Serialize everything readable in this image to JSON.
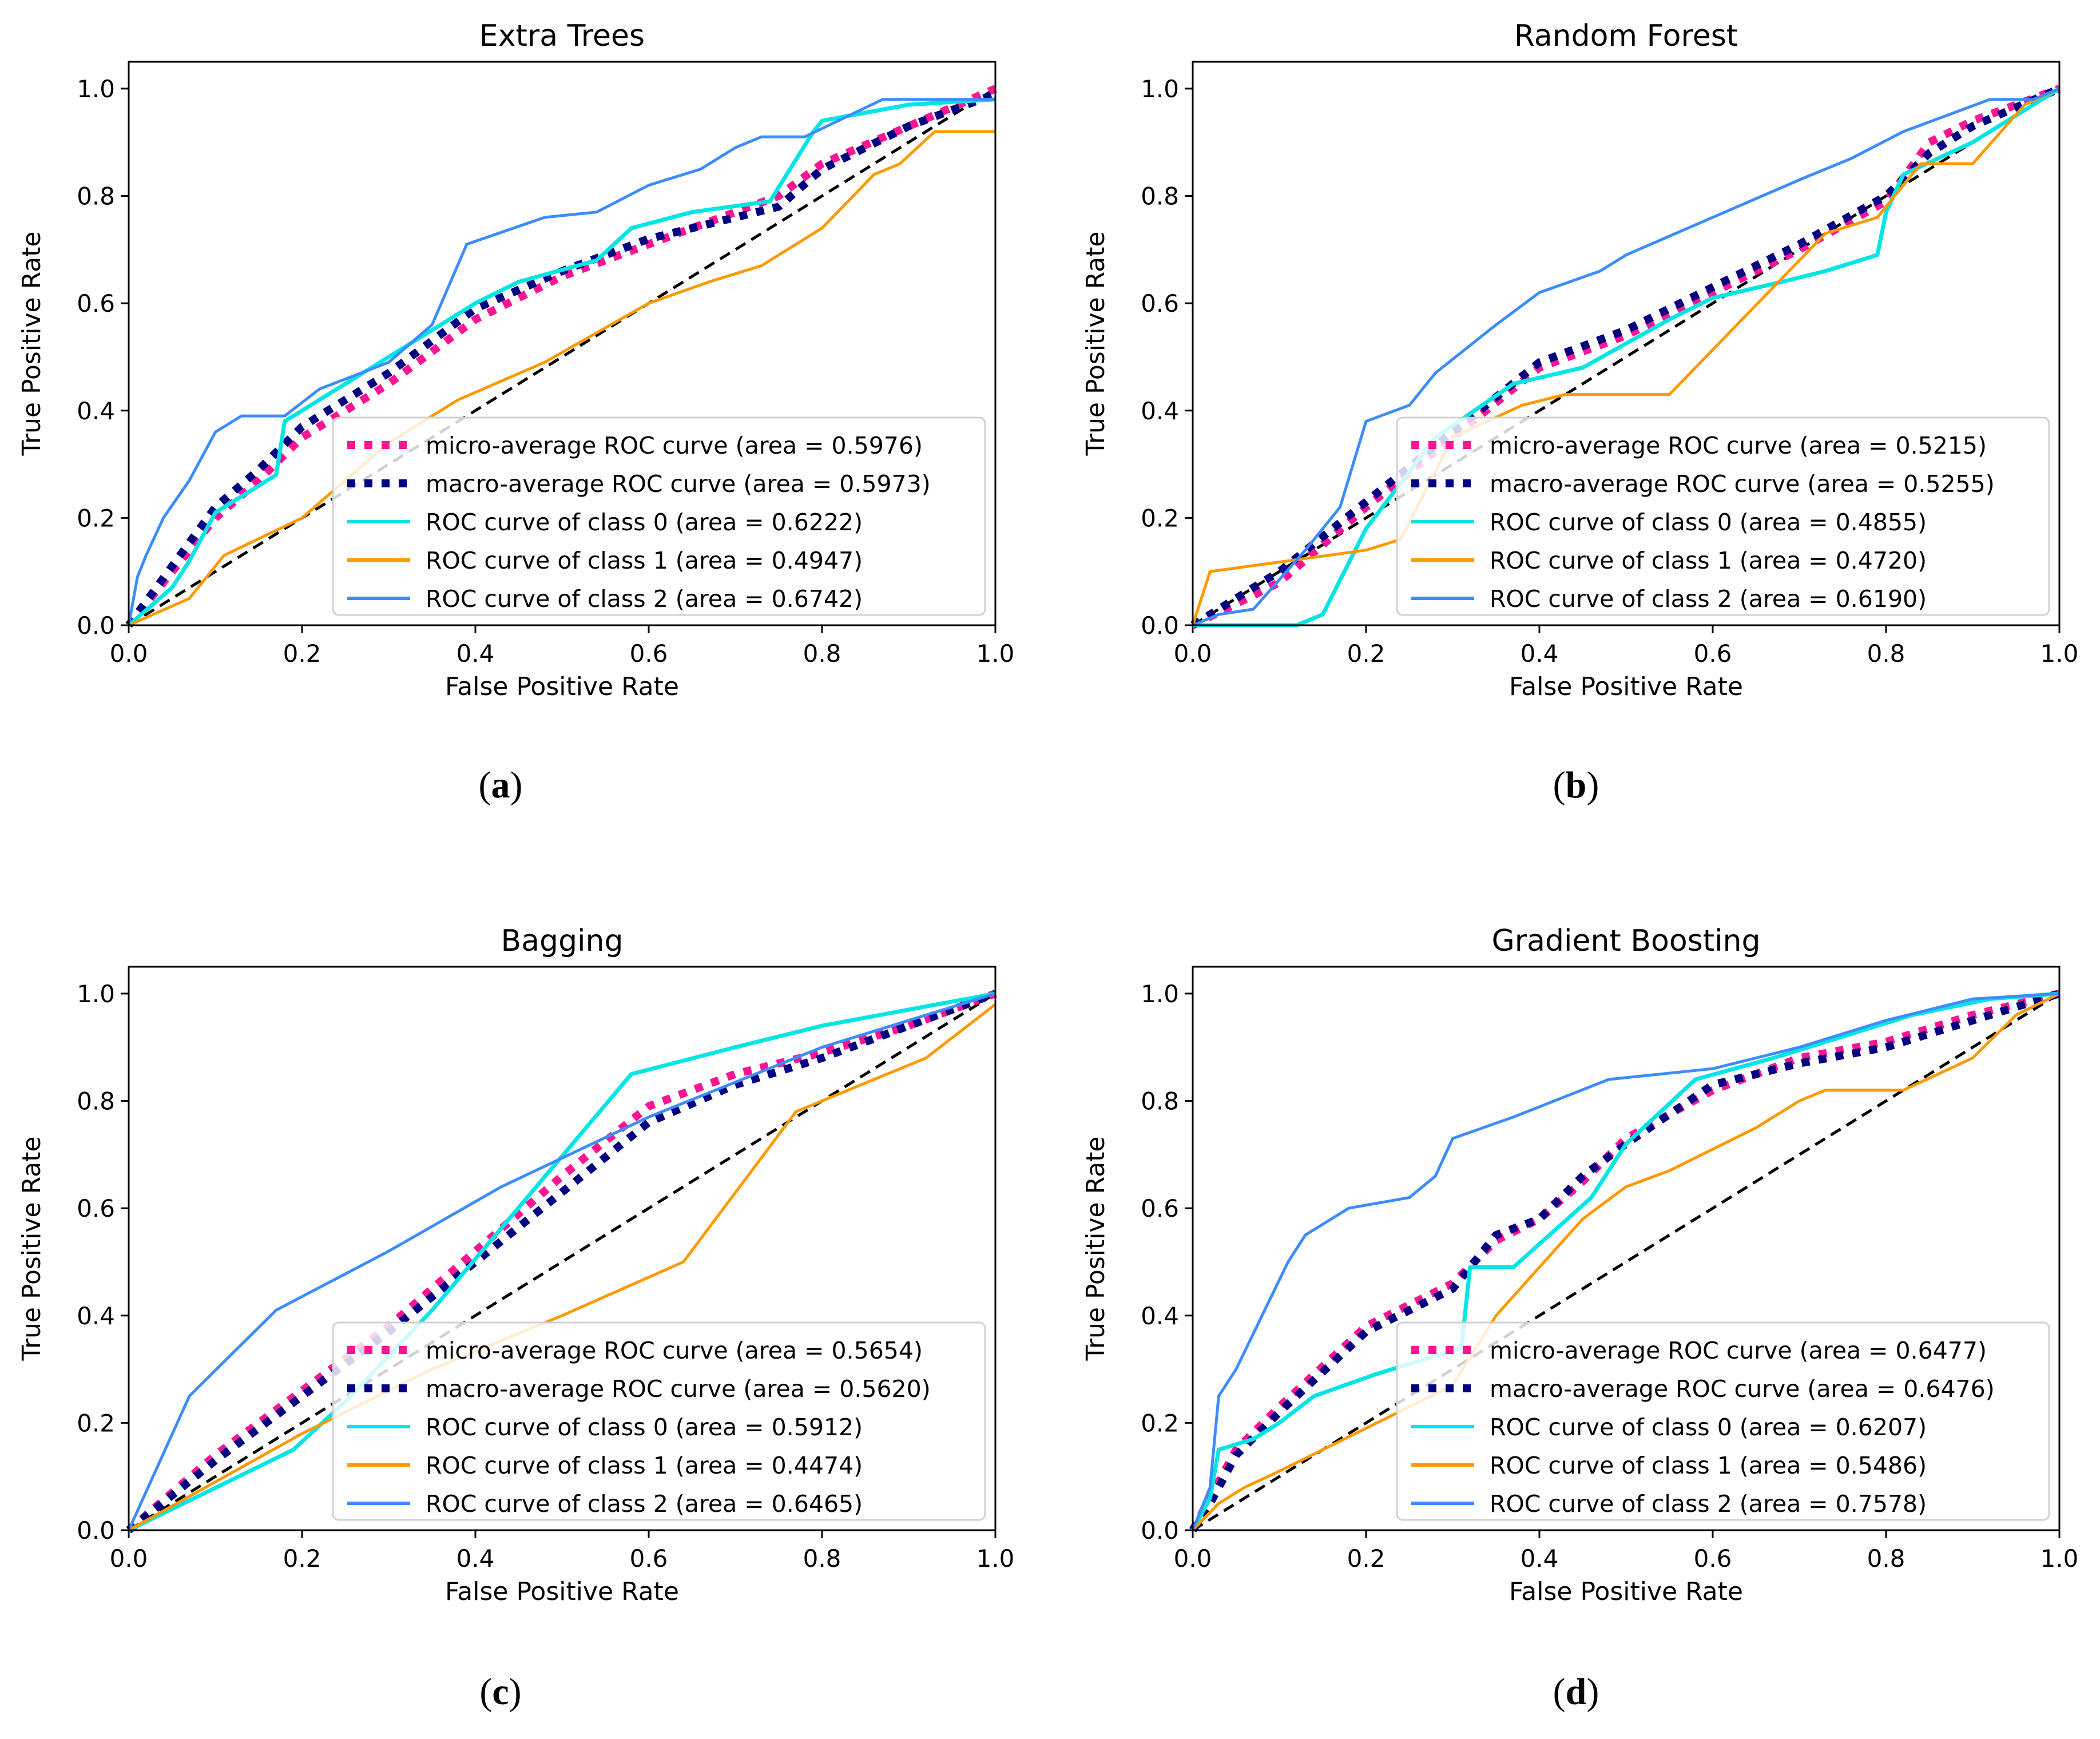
{
  "chart_data": [
    {
      "type": "line",
      "title": "Extra Trees",
      "xlabel": "False Positive Rate",
      "ylabel": "True Positive Rate",
      "xlim": [
        0.0,
        1.0
      ],
      "ylim": [
        0.0,
        1.05
      ],
      "xticks": [
        "0.0",
        "0.2",
        "0.4",
        "0.6",
        "0.8",
        "1.0"
      ],
      "yticks": [
        "0.0",
        "0.2",
        "0.4",
        "0.6",
        "0.8",
        "1.0"
      ],
      "caption_letter": "a",
      "legend_position": "lower-right",
      "series": [
        {
          "name": "micro-average ROC curve (area = 0.5976)",
          "color": "#ff1493",
          "style": "dotted",
          "x": [
            0,
            0.05,
            0.1,
            0.15,
            0.2,
            0.3,
            0.4,
            0.5,
            0.6,
            0.7,
            0.75,
            0.8,
            0.9,
            1.0
          ],
          "y": [
            0,
            0.1,
            0.2,
            0.27,
            0.35,
            0.45,
            0.57,
            0.65,
            0.71,
            0.77,
            0.8,
            0.86,
            0.93,
            1.0
          ]
        },
        {
          "name": "macro-average ROC curve (area = 0.5973)",
          "color": "#000080",
          "style": "dotted",
          "x": [
            0,
            0.05,
            0.1,
            0.15,
            0.2,
            0.3,
            0.4,
            0.5,
            0.6,
            0.7,
            0.75,
            0.8,
            0.9,
            1.0
          ],
          "y": [
            0,
            0.11,
            0.22,
            0.29,
            0.37,
            0.47,
            0.59,
            0.66,
            0.72,
            0.76,
            0.78,
            0.85,
            0.93,
            0.99
          ]
        },
        {
          "name": "ROC curve of class 0 (area = 0.6222)",
          "color": "#00e5e5",
          "style": "solid",
          "x": [
            0,
            0.05,
            0.07,
            0.1,
            0.17,
            0.18,
            0.25,
            0.35,
            0.4,
            0.45,
            0.54,
            0.58,
            0.65,
            0.74,
            0.79,
            0.8,
            0.9,
            1.0
          ],
          "y": [
            0,
            0.07,
            0.12,
            0.21,
            0.28,
            0.38,
            0.45,
            0.55,
            0.6,
            0.64,
            0.68,
            0.74,
            0.77,
            0.79,
            0.92,
            0.94,
            0.97,
            0.98
          ]
        },
        {
          "name": "ROC curve of class 1 (area = 0.4947)",
          "color": "#ff9900",
          "style": "solid",
          "x": [
            0,
            0.07,
            0.11,
            0.2,
            0.3,
            0.38,
            0.48,
            0.6,
            0.67,
            0.73,
            0.8,
            0.86,
            0.89,
            0.93,
            1.0
          ],
          "y": [
            0,
            0.05,
            0.13,
            0.2,
            0.34,
            0.42,
            0.49,
            0.6,
            0.64,
            0.67,
            0.74,
            0.84,
            0.86,
            0.92,
            0.92
          ]
        },
        {
          "name": "ROC curve of class 2 (area = 0.6742)",
          "color": "#3c8cff",
          "style": "solid",
          "x": [
            0,
            0.01,
            0.02,
            0.04,
            0.07,
            0.1,
            0.13,
            0.18,
            0.22,
            0.3,
            0.35,
            0.39,
            0.48,
            0.54,
            0.6,
            0.66,
            0.7,
            0.73,
            0.78,
            0.87,
            0.93,
            1.0
          ],
          "y": [
            0,
            0.09,
            0.13,
            0.2,
            0.27,
            0.36,
            0.39,
            0.39,
            0.44,
            0.49,
            0.56,
            0.71,
            0.76,
            0.77,
            0.82,
            0.85,
            0.89,
            0.91,
            0.91,
            0.98,
            0.98,
            0.98
          ]
        }
      ]
    },
    {
      "type": "line",
      "title": "Random Forest",
      "xlabel": "False Positive Rate",
      "ylabel": "True Positive Rate",
      "xlim": [
        0.0,
        1.0
      ],
      "ylim": [
        0.0,
        1.05
      ],
      "xticks": [
        "0.0",
        "0.2",
        "0.4",
        "0.6",
        "0.8",
        "1.0"
      ],
      "yticks": [
        "0.0",
        "0.2",
        "0.4",
        "0.6",
        "0.8",
        "1.0"
      ],
      "caption_letter": "b",
      "legend_position": "lower-right",
      "series": [
        {
          "name": "micro-average ROC curve (area = 0.5215)",
          "color": "#ff1493",
          "style": "dotted",
          "x": [
            0,
            0.1,
            0.2,
            0.3,
            0.4,
            0.5,
            0.6,
            0.7,
            0.8,
            0.85,
            0.9,
            1.0
          ],
          "y": [
            0,
            0.08,
            0.22,
            0.35,
            0.48,
            0.54,
            0.62,
            0.7,
            0.79,
            0.9,
            0.94,
            1.0
          ]
        },
        {
          "name": "macro-average ROC curve (area = 0.5255)",
          "color": "#000080",
          "style": "dotted",
          "x": [
            0,
            0.1,
            0.2,
            0.3,
            0.4,
            0.5,
            0.6,
            0.7,
            0.8,
            0.85,
            0.9,
            1.0
          ],
          "y": [
            0,
            0.1,
            0.23,
            0.36,
            0.49,
            0.55,
            0.63,
            0.71,
            0.8,
            0.88,
            0.93,
            1.0
          ]
        },
        {
          "name": "ROC curve of class 0 (area = 0.4855)",
          "color": "#00e5e5",
          "style": "solid",
          "x": [
            0,
            0.12,
            0.15,
            0.2,
            0.28,
            0.37,
            0.45,
            0.55,
            0.6,
            0.68,
            0.73,
            0.79,
            0.8,
            0.82,
            0.9,
            0.96,
            1.0
          ],
          "y": [
            0,
            0,
            0.02,
            0.18,
            0.35,
            0.45,
            0.48,
            0.57,
            0.61,
            0.64,
            0.66,
            0.69,
            0.77,
            0.84,
            0.9,
            0.96,
            1.0
          ]
        },
        {
          "name": "ROC curve of class 1 (area = 0.4720)",
          "color": "#ff9900",
          "style": "solid",
          "x": [
            0,
            0.02,
            0.2,
            0.24,
            0.3,
            0.38,
            0.43,
            0.55,
            0.73,
            0.79,
            0.84,
            0.9,
            0.96,
            1.0
          ],
          "y": [
            0,
            0.1,
            0.14,
            0.16,
            0.35,
            0.41,
            0.43,
            0.43,
            0.73,
            0.76,
            0.86,
            0.86,
            0.97,
            1.0
          ]
        },
        {
          "name": "ROC curve of class 2 (area = 0.6190)",
          "color": "#3c8cff",
          "style": "solid",
          "x": [
            0,
            0.03,
            0.07,
            0.13,
            0.17,
            0.2,
            0.25,
            0.28,
            0.35,
            0.4,
            0.47,
            0.5,
            0.6,
            0.7,
            0.76,
            0.82,
            0.87,
            0.92,
            0.97,
            1.0
          ],
          "y": [
            0,
            0.02,
            0.03,
            0.14,
            0.22,
            0.38,
            0.41,
            0.47,
            0.56,
            0.62,
            0.66,
            0.69,
            0.76,
            0.83,
            0.87,
            0.92,
            0.95,
            0.98,
            0.98,
            1.0
          ]
        }
      ]
    },
    {
      "type": "line",
      "title": "Bagging",
      "xlabel": "False Positive Rate",
      "ylabel": "True Positive Rate",
      "xlim": [
        0.0,
        1.0
      ],
      "ylim": [
        0.0,
        1.05
      ],
      "xticks": [
        "0.0",
        "0.2",
        "0.4",
        "0.6",
        "0.8",
        "1.0"
      ],
      "yticks": [
        "0.0",
        "0.2",
        "0.4",
        "0.6",
        "0.8",
        "1.0"
      ],
      "caption_letter": "c",
      "legend_position": "lower-right",
      "series": [
        {
          "name": "micro-average ROC curve (area = 0.5654)",
          "color": "#ff1493",
          "style": "dotted",
          "x": [
            0,
            0.1,
            0.2,
            0.3,
            0.4,
            0.5,
            0.6,
            0.7,
            0.8,
            0.9,
            1.0
          ],
          "y": [
            0,
            0.14,
            0.26,
            0.38,
            0.52,
            0.66,
            0.79,
            0.85,
            0.89,
            0.94,
            1.0
          ]
        },
        {
          "name": "macro-average ROC curve (area = 0.5620)",
          "color": "#000080",
          "style": "dotted",
          "x": [
            0,
            0.1,
            0.2,
            0.3,
            0.4,
            0.5,
            0.6,
            0.7,
            0.8,
            0.9,
            1.0
          ],
          "y": [
            0,
            0.13,
            0.25,
            0.37,
            0.5,
            0.63,
            0.76,
            0.83,
            0.88,
            0.94,
            1.0
          ]
        },
        {
          "name": "ROC curve of class 0 (area = 0.5912)",
          "color": "#00e5e5",
          "style": "solid",
          "x": [
            0,
            0.19,
            0.25,
            0.35,
            0.58,
            0.7,
            0.8,
            0.9,
            1.0
          ],
          "y": [
            0,
            0.15,
            0.24,
            0.41,
            0.85,
            0.9,
            0.94,
            0.97,
            1.0
          ]
        },
        {
          "name": "ROC curve of class 1 (area = 0.4474)",
          "color": "#ff9900",
          "style": "solid",
          "x": [
            0,
            0.2,
            0.35,
            0.5,
            0.64,
            0.77,
            0.8,
            0.92,
            1.0
          ],
          "y": [
            0,
            0.18,
            0.3,
            0.4,
            0.5,
            0.78,
            0.8,
            0.88,
            0.98
          ]
        },
        {
          "name": "ROC curve of class 2 (area = 0.6465)",
          "color": "#3c8cff",
          "style": "solid",
          "x": [
            0,
            0.07,
            0.17,
            0.3,
            0.43,
            0.6,
            0.8,
            0.9,
            1.0
          ],
          "y": [
            0,
            0.25,
            0.41,
            0.52,
            0.64,
            0.77,
            0.9,
            0.95,
            1.0
          ]
        }
      ]
    },
    {
      "type": "line",
      "title": "Gradient Boosting",
      "xlabel": "False Positive Rate",
      "ylabel": "True Positive Rate",
      "xlim": [
        0.0,
        1.0
      ],
      "ylim": [
        0.0,
        1.05
      ],
      "xticks": [
        "0.0",
        "0.2",
        "0.4",
        "0.6",
        "0.8",
        "1.0"
      ],
      "yticks": [
        "0.0",
        "0.2",
        "0.4",
        "0.6",
        "0.8",
        "1.0"
      ],
      "caption_letter": "d",
      "legend_position": "lower-right",
      "series": [
        {
          "name": "micro-average ROC curve (area = 0.6477)",
          "color": "#ff1493",
          "style": "dotted",
          "x": [
            0,
            0.02,
            0.05,
            0.1,
            0.2,
            0.3,
            0.35,
            0.4,
            0.45,
            0.5,
            0.6,
            0.7,
            0.8,
            0.9,
            1.0
          ],
          "y": [
            0,
            0.06,
            0.15,
            0.23,
            0.38,
            0.46,
            0.54,
            0.58,
            0.65,
            0.73,
            0.82,
            0.88,
            0.91,
            0.96,
            1.0
          ]
        },
        {
          "name": "macro-average ROC curve (area = 0.6476)",
          "color": "#000080",
          "style": "dotted",
          "x": [
            0,
            0.02,
            0.05,
            0.1,
            0.2,
            0.3,
            0.35,
            0.4,
            0.45,
            0.5,
            0.6,
            0.7,
            0.8,
            0.9,
            1.0
          ],
          "y": [
            0,
            0.05,
            0.14,
            0.22,
            0.37,
            0.45,
            0.55,
            0.58,
            0.66,
            0.72,
            0.83,
            0.87,
            0.9,
            0.95,
            1.0
          ]
        },
        {
          "name": "ROC curve of class 0 (area = 0.6207)",
          "color": "#00e5e5",
          "style": "solid",
          "x": [
            0,
            0.02,
            0.03,
            0.07,
            0.1,
            0.14,
            0.21,
            0.27,
            0.31,
            0.32,
            0.37,
            0.46,
            0.5,
            0.58,
            0.67,
            0.75,
            0.83,
            0.92,
            1.0
          ],
          "y": [
            0,
            0.06,
            0.15,
            0.17,
            0.2,
            0.25,
            0.29,
            0.32,
            0.34,
            0.49,
            0.49,
            0.62,
            0.72,
            0.84,
            0.88,
            0.92,
            0.96,
            0.99,
            1.0
          ]
        },
        {
          "name": "ROC curve of class 1 (area = 0.5486)",
          "color": "#ff9900",
          "style": "solid",
          "x": [
            0,
            0.03,
            0.06,
            0.1,
            0.15,
            0.2,
            0.25,
            0.3,
            0.35,
            0.4,
            0.45,
            0.5,
            0.55,
            0.6,
            0.65,
            0.7,
            0.73,
            0.82,
            0.9,
            0.95,
            1.0
          ],
          "y": [
            0,
            0.05,
            0.08,
            0.11,
            0.15,
            0.19,
            0.23,
            0.27,
            0.4,
            0.49,
            0.58,
            0.64,
            0.67,
            0.71,
            0.75,
            0.8,
            0.82,
            0.82,
            0.88,
            0.96,
            1.0
          ]
        },
        {
          "name": "ROC curve of class 2 (area = 0.7578)",
          "color": "#3c8cff",
          "style": "solid",
          "x": [
            0,
            0.02,
            0.03,
            0.05,
            0.08,
            0.11,
            0.13,
            0.15,
            0.18,
            0.25,
            0.28,
            0.3,
            0.37,
            0.48,
            0.6,
            0.7,
            0.8,
            0.9,
            1.0
          ],
          "y": [
            0,
            0.08,
            0.25,
            0.3,
            0.4,
            0.5,
            0.55,
            0.57,
            0.6,
            0.62,
            0.66,
            0.73,
            0.77,
            0.84,
            0.86,
            0.9,
            0.95,
            0.99,
            1.0
          ]
        }
      ]
    }
  ]
}
